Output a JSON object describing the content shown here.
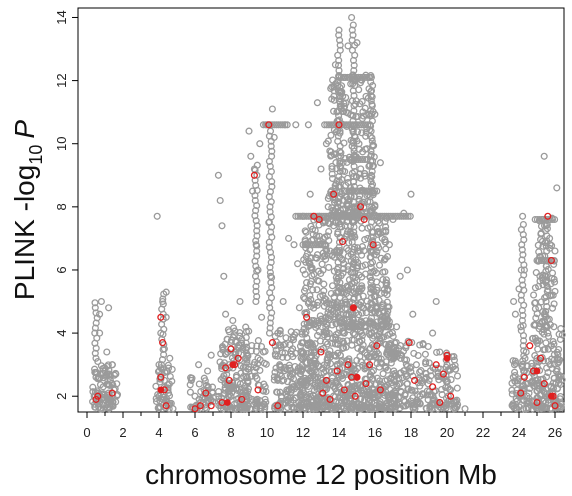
{
  "chart_data": {
    "type": "scatter",
    "title": "",
    "xlabel": "chromosome 12 position Mb",
    "ylabel_main": "PLINK  -log",
    "ylabel_sub": "10",
    "ylabel_italic": "P",
    "xlim": [
      -0.5,
      26.5
    ],
    "ylim": [
      1.5,
      14.3
    ],
    "x_ticks": [
      0,
      2,
      4,
      6,
      8,
      10,
      12,
      14,
      16,
      18,
      20,
      22,
      24,
      26
    ],
    "y_ticks": [
      2,
      4,
      6,
      8,
      10,
      12,
      14
    ],
    "grid": false,
    "legend": "none",
    "marker": "open-circle",
    "colors": {
      "background_series": "#9a9a9a",
      "highlighted_series": "#e02020",
      "axis": "#000000"
    },
    "series": [
      {
        "color": "#9a9a9a",
        "points": [
          [
            0.4,
            2.0
          ],
          [
            0.5,
            2.6
          ],
          [
            0.6,
            3.1
          ],
          [
            0.7,
            4.0
          ],
          [
            0.7,
            4.6
          ],
          [
            0.8,
            5.0
          ],
          [
            0.9,
            2.3
          ],
          [
            1.0,
            2.8
          ],
          [
            1.1,
            3.4
          ],
          [
            1.2,
            2.1
          ],
          [
            1.2,
            4.8
          ],
          [
            1.3,
            2.5
          ],
          [
            1.4,
            3.0
          ],
          [
            1.5,
            2.2
          ],
          [
            1.6,
            2.7
          ],
          [
            3.9,
            7.7
          ],
          [
            4.0,
            2.0
          ],
          [
            4.0,
            3.0
          ],
          [
            4.1,
            4.0
          ],
          [
            4.2,
            5.0
          ],
          [
            4.3,
            2.5
          ],
          [
            4.3,
            3.5
          ],
          [
            4.4,
            4.5
          ],
          [
            4.4,
            5.3
          ],
          [
            4.5,
            2.2
          ],
          [
            4.6,
            3.2
          ],
          [
            5.8,
            2.5
          ],
          [
            6.0,
            2.0
          ],
          [
            6.2,
            3.0
          ],
          [
            6.3,
            1.8
          ],
          [
            6.5,
            2.2
          ],
          [
            6.7,
            2.8
          ],
          [
            6.9,
            3.3
          ],
          [
            7.3,
            9.0
          ],
          [
            7.4,
            8.2
          ],
          [
            7.5,
            7.4
          ],
          [
            7.6,
            5.8
          ],
          [
            7.7,
            4.6
          ],
          [
            7.7,
            2.4
          ],
          [
            7.8,
            3.8
          ],
          [
            7.9,
            3.0
          ],
          [
            8.0,
            2.0
          ],
          [
            8.1,
            4.4
          ],
          [
            8.2,
            3.4
          ],
          [
            8.3,
            2.6
          ],
          [
            8.5,
            5.0
          ],
          [
            8.6,
            3.8
          ],
          [
            8.8,
            2.2
          ],
          [
            9.0,
            10.4
          ],
          [
            9.1,
            9.6
          ],
          [
            9.2,
            8.5
          ],
          [
            9.3,
            9.2
          ],
          [
            9.4,
            6.8
          ],
          [
            9.5,
            6.0
          ],
          [
            9.6,
            10.0
          ],
          [
            9.7,
            4.5
          ],
          [
            9.8,
            3.4
          ],
          [
            9.9,
            2.3
          ],
          [
            10.0,
            10.6
          ],
          [
            10.1,
            7.5
          ],
          [
            10.2,
            5.8
          ],
          [
            10.3,
            11.1
          ],
          [
            10.4,
            10.2
          ],
          [
            10.6,
            2.5
          ],
          [
            10.6,
            4.0
          ],
          [
            10.7,
            3.0
          ],
          [
            10.8,
            2.0
          ],
          [
            10.9,
            5.0
          ],
          [
            11.0,
            10.6
          ],
          [
            11.2,
            7.0
          ],
          [
            11.5,
            6.8
          ],
          [
            11.6,
            10.6
          ],
          [
            11.7,
            6.2
          ],
          [
            11.8,
            4.8
          ],
          [
            11.9,
            3.2
          ],
          [
            12.0,
            2.2
          ],
          [
            12.0,
            7.7
          ],
          [
            12.2,
            5.6
          ],
          [
            12.3,
            10.6
          ],
          [
            12.4,
            8.4
          ],
          [
            12.5,
            6.0
          ],
          [
            12.6,
            4.4
          ],
          [
            12.7,
            3.0
          ],
          [
            12.8,
            11.3
          ],
          [
            12.9,
            7.7
          ],
          [
            13.0,
            9.2
          ],
          [
            13.1,
            5.2
          ],
          [
            13.2,
            2.4
          ],
          [
            13.3,
            10.0
          ],
          [
            13.4,
            8.0
          ],
          [
            13.5,
            6.6
          ],
          [
            13.6,
            11.8
          ],
          [
            13.7,
            7.4
          ],
          [
            13.8,
            12.5
          ],
          [
            13.9,
            4.8
          ],
          [
            14.0,
            13.6
          ],
          [
            14.0,
            2.6
          ],
          [
            14.1,
            9.6
          ],
          [
            14.2,
            7.7
          ],
          [
            14.3,
            12.1
          ],
          [
            14.4,
            11.0
          ],
          [
            14.5,
            13.1
          ],
          [
            14.6,
            8.5
          ],
          [
            14.7,
            14.0
          ],
          [
            14.8,
            6.2
          ],
          [
            14.9,
            10.2
          ],
          [
            15.0,
            13.2
          ],
          [
            15.1,
            12.1
          ],
          [
            15.2,
            4.2
          ],
          [
            15.3,
            10.8
          ],
          [
            15.4,
            8.0
          ],
          [
            15.5,
            11.5
          ],
          [
            15.6,
            7.0
          ],
          [
            15.7,
            12.1
          ],
          [
            15.8,
            9.0
          ],
          [
            15.9,
            6.6
          ],
          [
            16.0,
            5.0
          ],
          [
            16.1,
            8.5
          ],
          [
            16.2,
            3.2
          ],
          [
            16.3,
            9.4
          ],
          [
            16.4,
            7.0
          ],
          [
            16.6,
            5.6
          ],
          [
            16.8,
            6.8
          ],
          [
            16.9,
            4.2
          ],
          [
            17.0,
            7.6
          ],
          [
            17.2,
            4.2
          ],
          [
            17.4,
            5.8
          ],
          [
            17.6,
            7.8
          ],
          [
            17.8,
            6.0
          ],
          [
            17.8,
            2.4
          ],
          [
            18.0,
            8.4
          ],
          [
            18.1,
            4.6
          ],
          [
            18.3,
            3.0
          ],
          [
            18.5,
            2.0
          ],
          [
            19.2,
            4.0
          ],
          [
            19.4,
            5.0
          ],
          [
            19.6,
            3.4
          ],
          [
            19.8,
            2.6
          ],
          [
            20.0,
            3.0
          ],
          [
            20.2,
            2.2
          ],
          [
            20.4,
            1.8
          ],
          [
            21.0,
            1.6
          ],
          [
            23.7,
            5.0
          ],
          [
            23.8,
            4.6
          ],
          [
            24.0,
            5.4
          ],
          [
            24.1,
            4.2
          ],
          [
            24.2,
            7.7
          ],
          [
            24.3,
            6.0
          ],
          [
            24.4,
            3.4
          ],
          [
            24.5,
            2.4
          ],
          [
            25.0,
            3.2
          ],
          [
            25.1,
            4.8
          ],
          [
            25.2,
            6.4
          ],
          [
            25.3,
            7.6
          ],
          [
            25.4,
            9.6
          ],
          [
            25.5,
            5.6
          ],
          [
            25.6,
            4.0
          ],
          [
            25.7,
            7.0
          ],
          [
            25.8,
            3.6
          ],
          [
            25.9,
            5.2
          ],
          [
            26.0,
            6.6
          ],
          [
            26.1,
            8.6
          ],
          [
            26.2,
            2.4
          ],
          [
            26.3,
            3.8
          ]
        ],
        "dense_bands": [
          {
            "x": [
              0.3,
              1.7
            ],
            "y": [
              1.6,
              3.0
            ],
            "n": 90
          },
          {
            "x": [
              3.8,
              4.8
            ],
            "y": [
              1.6,
              3.0
            ],
            "n": 50
          },
          {
            "x": [
              5.7,
              7.0
            ],
            "y": [
              1.6,
              2.6
            ],
            "n": 40
          },
          {
            "x": [
              7.3,
              9.0
            ],
            "y": [
              1.6,
              4.2
            ],
            "n": 160
          },
          {
            "x": [
              8.8,
              10.0
            ],
            "y": [
              1.6,
              4.0
            ],
            "n": 70
          },
          {
            "x": [
              10.4,
              12.0
            ],
            "y": [
              1.6,
              4.2
            ],
            "n": 130
          },
          {
            "x": [
              11.8,
              17.2
            ],
            "y": [
              1.6,
              4.2
            ],
            "n": 600
          },
          {
            "x": [
              12.0,
              16.8
            ],
            "y": [
              4.2,
              7.7
            ],
            "n": 420
          },
          {
            "x": [
              13.4,
              16.0
            ],
            "y": [
              7.7,
              12.2
            ],
            "n": 240
          },
          {
            "x": [
              17.0,
              19.0
            ],
            "y": [
              1.6,
              3.8
            ],
            "n": 110
          },
          {
            "x": [
              19.0,
              20.6
            ],
            "y": [
              1.6,
              3.4
            ],
            "n": 90
          },
          {
            "x": [
              23.6,
              24.6
            ],
            "y": [
              1.6,
              3.2
            ],
            "n": 60
          },
          {
            "x": [
              24.7,
              26.4
            ],
            "y": [
              1.6,
              4.2
            ],
            "n": 160
          },
          {
            "x": [
              24.8,
              26.0
            ],
            "y": [
              4.2,
              7.7
            ],
            "n": 70
          }
        ],
        "horizontal_runs": [
          {
            "y": 12.1,
            "x": [
              14.0,
              15.9
            ]
          },
          {
            "y": 10.6,
            "x": [
              13.2,
              15.8
            ]
          },
          {
            "y": 7.7,
            "x": [
              11.6,
              18.0
            ]
          },
          {
            "y": 9.5,
            "x": [
              14.6,
              15.6
            ]
          },
          {
            "y": 8.5,
            "x": [
              14.3,
              16.0
            ]
          },
          {
            "y": 6.8,
            "x": [
              12.0,
              13.3
            ]
          },
          {
            "y": 10.6,
            "x": [
              9.8,
              11.2
            ]
          },
          {
            "y": 7.6,
            "x": [
              24.9,
              26.0
            ]
          },
          {
            "y": 6.3,
            "x": [
              25.0,
              26.0
            ]
          }
        ],
        "vertical_runs": [
          {
            "x": 0.5,
            "y": [
              3.2,
              5.0
            ]
          },
          {
            "x": 4.2,
            "y": [
              3.0,
              5.3
            ]
          },
          {
            "x": 9.4,
            "y": [
              5.0,
              9.4
            ]
          },
          {
            "x": 10.2,
            "y": [
              4.0,
              10.5
            ]
          },
          {
            "x": 14.8,
            "y": [
              4.0,
              13.9
            ]
          },
          {
            "x": 14.0,
            "y": [
              4.0,
              13.5
            ]
          },
          {
            "x": 15.8,
            "y": [
              4.0,
              12.0
            ]
          },
          {
            "x": 25.5,
            "y": [
              4.2,
              7.5
            ]
          },
          {
            "x": 24.2,
            "y": [
              2.0,
              7.6
            ]
          }
        ]
      },
      {
        "color": "#e02020",
        "points": [
          [
            0.5,
            1.9
          ],
          [
            0.6,
            2.0
          ],
          [
            1.4,
            2.1
          ],
          [
            4.1,
            4.5
          ],
          [
            4.2,
            3.7
          ],
          [
            4.3,
            2.2
          ],
          [
            4.4,
            1.7
          ],
          [
            4.1,
            2.6
          ],
          [
            6.0,
            1.6
          ],
          [
            6.3,
            1.7
          ],
          [
            6.6,
            2.1
          ],
          [
            6.9,
            1.7
          ],
          [
            7.5,
            1.8
          ],
          [
            7.7,
            2.9
          ],
          [
            7.9,
            2.5
          ],
          [
            8.0,
            3.5
          ],
          [
            8.2,
            3.0
          ],
          [
            8.4,
            3.2
          ],
          [
            8.6,
            1.9
          ],
          [
            9.3,
            9.0
          ],
          [
            9.5,
            2.2
          ],
          [
            10.1,
            10.6
          ],
          [
            10.3,
            3.7
          ],
          [
            10.6,
            1.7
          ],
          [
            12.2,
            4.5
          ],
          [
            12.6,
            7.7
          ],
          [
            12.9,
            7.6
          ],
          [
            13.0,
            3.4
          ],
          [
            13.1,
            2.1
          ],
          [
            13.3,
            2.5
          ],
          [
            13.5,
            1.9
          ],
          [
            13.7,
            8.4
          ],
          [
            13.9,
            2.8
          ],
          [
            14.0,
            10.6
          ],
          [
            14.2,
            6.9
          ],
          [
            14.3,
            2.2
          ],
          [
            14.5,
            3.0
          ],
          [
            14.7,
            2.6
          ],
          [
            14.9,
            2.0
          ],
          [
            14.8,
            4.8
          ],
          [
            15.0,
            2.6
          ],
          [
            15.2,
            8.0
          ],
          [
            15.4,
            7.6
          ],
          [
            15.5,
            2.4
          ],
          [
            15.7,
            3.0
          ],
          [
            15.9,
            6.8
          ],
          [
            16.1,
            3.6
          ],
          [
            16.3,
            2.2
          ],
          [
            17.9,
            3.7
          ],
          [
            18.2,
            2.5
          ],
          [
            19.2,
            2.3
          ],
          [
            19.4,
            3.0
          ],
          [
            19.6,
            1.8
          ],
          [
            19.8,
            2.7
          ],
          [
            20.0,
            3.3
          ],
          [
            20.2,
            2.0
          ],
          [
            24.1,
            2.1
          ],
          [
            24.3,
            2.6
          ],
          [
            24.6,
            3.6
          ],
          [
            24.8,
            2.8
          ],
          [
            25.0,
            1.8
          ],
          [
            25.2,
            3.2
          ],
          [
            25.4,
            2.4
          ],
          [
            25.6,
            7.7
          ],
          [
            25.8,
            6.3
          ],
          [
            25.9,
            2.0
          ],
          [
            26.0,
            1.7
          ]
        ]
      }
    ]
  }
}
